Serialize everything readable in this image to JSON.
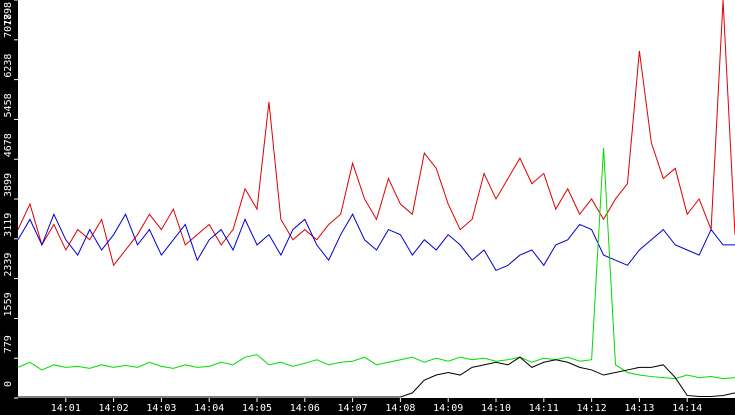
{
  "chart_data": {
    "type": "line",
    "x": [
      0,
      0.25,
      0.5,
      0.75,
      1,
      1.25,
      1.5,
      1.75,
      2,
      2.25,
      2.5,
      2.75,
      3,
      3.25,
      3.5,
      3.75,
      4,
      4.25,
      4.5,
      4.75,
      5,
      5.25,
      5.5,
      5.75,
      6,
      6.25,
      6.5,
      6.75,
      7,
      7.25,
      7.5,
      7.75,
      8,
      8.25,
      8.5,
      8.75,
      9,
      9.25,
      9.5,
      9.75,
      10,
      10.25,
      10.5,
      10.75,
      11,
      11.25,
      11.5,
      11.75,
      12,
      12.25,
      12.5,
      12.75,
      13,
      13.25,
      13.5,
      13.75,
      14,
      14.25,
      14.5,
      14.75,
      15
    ],
    "xlim": [
      0,
      15
    ],
    "xticks": [
      {
        "value": 1,
        "label": "14:01"
      },
      {
        "value": 2,
        "label": "14:02"
      },
      {
        "value": 3,
        "label": "14:03"
      },
      {
        "value": 4,
        "label": "14:04"
      },
      {
        "value": 5,
        "label": "14:05"
      },
      {
        "value": 6,
        "label": "14:06"
      },
      {
        "value": 7,
        "label": "14:07"
      },
      {
        "value": 8,
        "label": "14:08"
      },
      {
        "value": 9,
        "label": "14:09"
      },
      {
        "value": 10,
        "label": "14:10"
      },
      {
        "value": 11,
        "label": "14:11"
      },
      {
        "value": 12,
        "label": "14:12"
      },
      {
        "value": 13,
        "label": "14:13"
      },
      {
        "value": 14,
        "label": "14:14"
      }
    ],
    "ylim": [
      0,
      7798
    ],
    "yticks": [
      0,
      779,
      1559,
      2339,
      3119,
      3899,
      4678,
      5458,
      6238,
      7018,
      7798
    ],
    "series": [
      {
        "color": "#e00000",
        "values": [
          3300,
          3800,
          3000,
          3400,
          2900,
          3300,
          3100,
          3500,
          2600,
          2900,
          3200,
          3600,
          3300,
          3700,
          3000,
          3200,
          3400,
          3000,
          3300,
          4100,
          3700,
          5800,
          3500,
          3100,
          3300,
          3100,
          3400,
          3600,
          4600,
          3900,
          3500,
          4300,
          3800,
          3600,
          4800,
          4500,
          3800,
          3300,
          3500,
          4400,
          3900,
          4300,
          4700,
          4200,
          4400,
          3700,
          4100,
          3600,
          3900,
          3500,
          3900,
          4200,
          6800,
          5000,
          4300,
          4500,
          3600,
          3900,
          3300,
          7798,
          3200
        ]
      },
      {
        "color": "#0000d0",
        "values": [
          3100,
          3500,
          3000,
          3600,
          3100,
          2800,
          3300,
          2900,
          3200,
          3600,
          3000,
          3300,
          2800,
          3100,
          3400,
          2700,
          3100,
          3300,
          2900,
          3500,
          3000,
          3200,
          2800,
          3300,
          3500,
          3000,
          2700,
          3200,
          3600,
          3100,
          2900,
          3300,
          3200,
          2800,
          3100,
          2900,
          3200,
          3000,
          2700,
          2900,
          2500,
          2600,
          2800,
          2900,
          2600,
          3000,
          3100,
          3400,
          3300,
          2800,
          2700,
          2600,
          2900,
          3100,
          3300,
          3000,
          2900,
          2800,
          3300,
          3000,
          3000
        ]
      },
      {
        "color": "#00dd00",
        "values": [
          600,
          700,
          550,
          650,
          600,
          620,
          580,
          650,
          600,
          640,
          600,
          700,
          620,
          580,
          650,
          600,
          620,
          700,
          650,
          800,
          850,
          650,
          700,
          620,
          680,
          750,
          650,
          700,
          720,
          800,
          650,
          700,
          750,
          800,
          700,
          780,
          720,
          800,
          750,
          780,
          720,
          750,
          800,
          700,
          780,
          750,
          800,
          720,
          750,
          4900,
          650,
          500,
          450,
          420,
          400,
          380,
          450,
          400,
          420,
          380,
          400
        ]
      },
      {
        "color": "#000000",
        "values": [
          20,
          20,
          20,
          20,
          20,
          20,
          20,
          20,
          20,
          20,
          20,
          20,
          20,
          20,
          20,
          20,
          20,
          20,
          20,
          20,
          20,
          20,
          20,
          20,
          20,
          20,
          20,
          20,
          20,
          20,
          20,
          20,
          20,
          100,
          350,
          450,
          500,
          450,
          600,
          650,
          700,
          650,
          800,
          600,
          700,
          750,
          700,
          600,
          550,
          450,
          500,
          550,
          600,
          600,
          650,
          400,
          50,
          30,
          30,
          50,
          100
        ]
      }
    ]
  }
}
